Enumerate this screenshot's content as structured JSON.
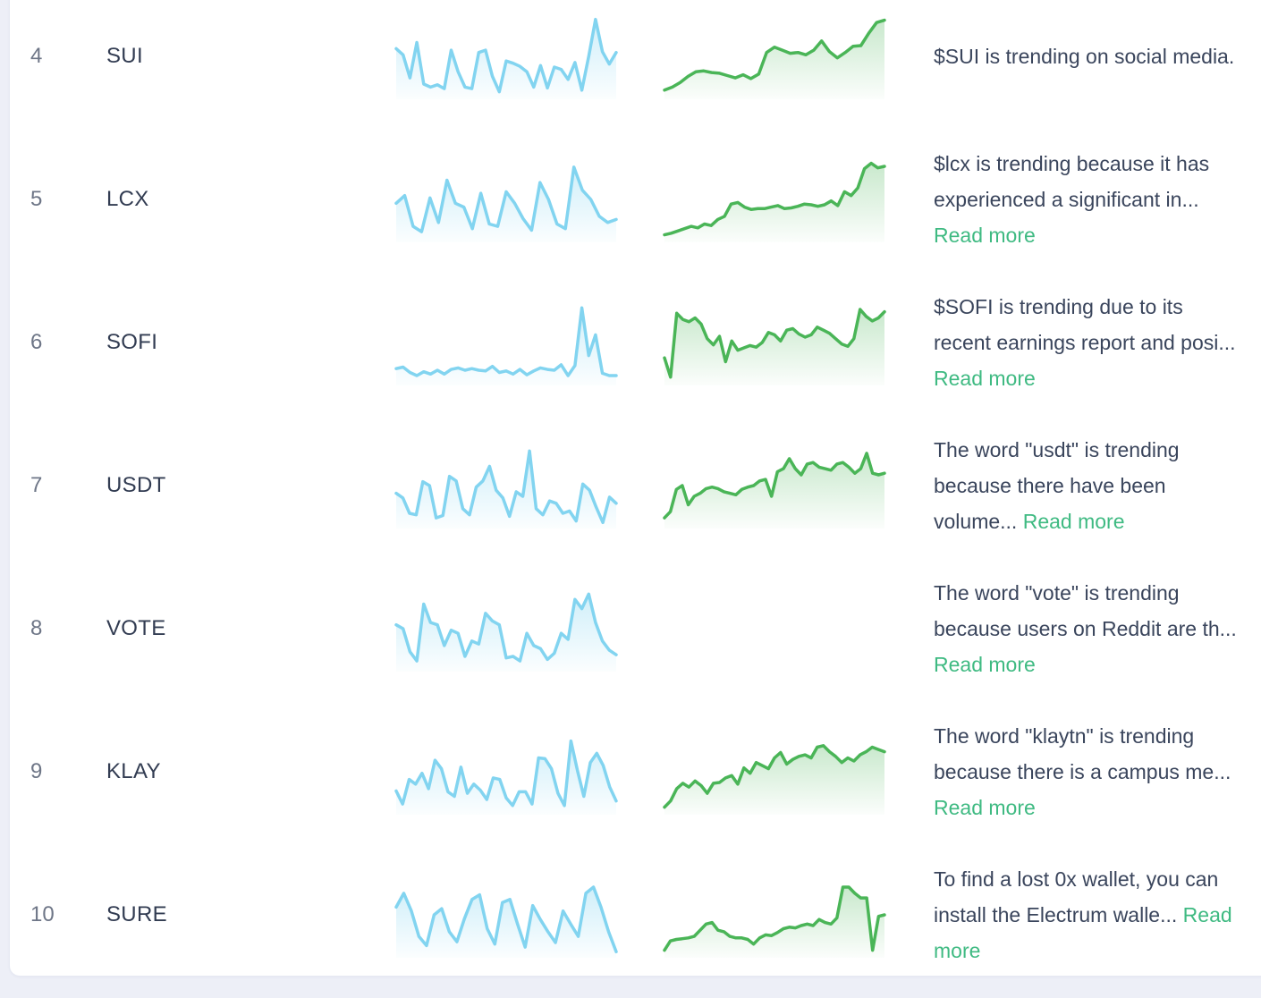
{
  "colors": {
    "spark_blue": "#82d4f0",
    "spark_green": "#4ab557",
    "read_more": "#3fba82",
    "rank_text": "#6e7687",
    "symbol_text": "#323c52",
    "desc_text": "#3a455c",
    "page_bg": "#edeff7",
    "card_bg": "#ffffff"
  },
  "chart_data": {
    "type": "line",
    "note": "Each table row holds two unlabeled sparklines: blue = social mentions trend, green = price trend. Values are relative 0-100 estimates; no axes or ticks are shown in the UI."
  },
  "rows": [
    {
      "rank": "4",
      "symbol": "SUI",
      "desc": "$SUI is trending on social media.",
      "read_more": "",
      "spark_blue": [
        60,
        52,
        22,
        68,
        14,
        10,
        13,
        8,
        58,
        30,
        10,
        8,
        55,
        58,
        24,
        4,
        44,
        41,
        37,
        30,
        10,
        38,
        9,
        36,
        33,
        20,
        42,
        6,
        50,
        98,
        56,
        40,
        55
      ],
      "spark_green": [
        6,
        10,
        16,
        24,
        30,
        31,
        29,
        28,
        25,
        22,
        26,
        21,
        27,
        55,
        62,
        58,
        54,
        55,
        52,
        58,
        70,
        56,
        48,
        55,
        63,
        64,
        80,
        94,
        97
      ]
    },
    {
      "rank": "5",
      "symbol": "LCX",
      "desc": "$lcx is trending because it has experienced a significant in...",
      "read_more": "Read more",
      "spark_blue": [
        45,
        55,
        15,
        8,
        52,
        20,
        75,
        45,
        40,
        12,
        58,
        18,
        15,
        60,
        45,
        25,
        10,
        72,
        50,
        18,
        12,
        92,
        62,
        50,
        28,
        20,
        24
      ],
      "spark_green": [
        4,
        6,
        9,
        12,
        15,
        13,
        18,
        16,
        24,
        28,
        44,
        46,
        40,
        37,
        38,
        38,
        40,
        42,
        38,
        39,
        41,
        44,
        43,
        41,
        43,
        48,
        42,
        60,
        55,
        65,
        90,
        97,
        91,
        93
      ]
    },
    {
      "rank": "6",
      "symbol": "SOFI",
      "desc": "$SOFI is trending due to its recent earnings report and posi...",
      "read_more": "Read more",
      "spark_blue": [
        16,
        18,
        11,
        7,
        12,
        9,
        14,
        9,
        15,
        17,
        14,
        16,
        14,
        13,
        19,
        11,
        13,
        9,
        15,
        8,
        13,
        17,
        15,
        14,
        21,
        7,
        20,
        95,
        33,
        60,
        10,
        7,
        7
      ],
      "spark_green": [
        30,
        5,
        88,
        80,
        77,
        82,
        74,
        55,
        47,
        58,
        25,
        52,
        40,
        43,
        46,
        44,
        50,
        63,
        60,
        52,
        66,
        68,
        61,
        57,
        60,
        70,
        66,
        62,
        55,
        48,
        45,
        55,
        93,
        84,
        78,
        82,
        90
      ]
    },
    {
      "rank": "7",
      "symbol": "USDT",
      "desc": "The word \"usdt\" is trending because there have been volume...",
      "read_more": "Read more",
      "spark_blue": [
        40,
        34,
        14,
        12,
        55,
        50,
        8,
        11,
        62,
        56,
        20,
        12,
        48,
        56,
        75,
        44,
        34,
        10,
        42,
        36,
        95,
        20,
        12,
        30,
        27,
        14,
        17,
        4,
        52,
        44,
        22,
        2,
        35,
        27
      ],
      "spark_green": [
        8,
        16,
        45,
        50,
        25,
        36,
        40,
        46,
        48,
        46,
        42,
        40,
        38,
        45,
        48,
        50,
        56,
        58,
        36,
        68,
        72,
        85,
        72,
        64,
        78,
        80,
        74,
        72,
        70,
        78,
        80,
        74,
        66,
        72,
        92,
        66,
        64,
        66
      ]
    },
    {
      "rank": "8",
      "symbol": "VOTE",
      "desc": "The word \"vote\" is trending because users on Reddit are th...",
      "read_more": "Read more",
      "spark_blue": [
        55,
        50,
        20,
        8,
        82,
        58,
        55,
        28,
        48,
        44,
        14,
        34,
        30,
        70,
        60,
        55,
        12,
        14,
        8,
        44,
        28,
        24,
        10,
        18,
        44,
        36,
        88,
        76,
        95,
        58,
        34,
        22,
        16
      ],
      "spark_green": null
    },
    {
      "rank": "9",
      "symbol": "KLAY",
      "desc": "The word \"klaytn\" is trending because there is a campus me...",
      "read_more": "Read more",
      "spark_blue": [
        25,
        8,
        40,
        34,
        48,
        28,
        65,
        54,
        24,
        18,
        56,
        22,
        34,
        26,
        14,
        42,
        40,
        16,
        6,
        24,
        24,
        8,
        68,
        67,
        54,
        22,
        6,
        90,
        52,
        18,
        62,
        74,
        58,
        30,
        12
      ],
      "spark_green": [
        4,
        12,
        28,
        35,
        30,
        38,
        32,
        22,
        35,
        36,
        42,
        45,
        34,
        55,
        48,
        62,
        58,
        54,
        68,
        75,
        60,
        66,
        70,
        72,
        68,
        82,
        84,
        76,
        70,
        62,
        68,
        64,
        72,
        76,
        82,
        79,
        76
      ]
    },
    {
      "rank": "10",
      "symbol": "SURE",
      "desc": "To find a lost 0x wallet, you can install the Electrum walle...",
      "read_more": "Read more",
      "spark_blue": [
        60,
        78,
        55,
        22,
        10,
        50,
        58,
        28,
        15,
        45,
        70,
        76,
        32,
        12,
        66,
        70,
        38,
        8,
        62,
        44,
        28,
        14,
        55,
        38,
        22,
        78,
        86,
        60,
        28,
        2
      ],
      "spark_green": [
        4,
        16,
        18,
        19,
        20,
        22,
        30,
        38,
        40,
        30,
        28,
        22,
        20,
        20,
        18,
        12,
        20,
        24,
        23,
        27,
        32,
        34,
        33,
        36,
        38,
        36,
        44,
        40,
        38,
        46,
        86,
        86,
        78,
        72,
        72,
        4,
        48,
        50
      ]
    }
  ]
}
